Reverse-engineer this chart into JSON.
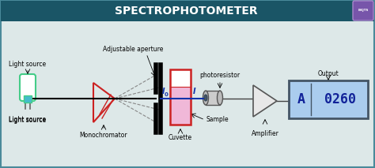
{
  "title": "SPECTROPHOTOMETER",
  "title_bg": "#1a5566",
  "title_color": "white",
  "bg_color": "#dde8e8",
  "border_color": "#4a8a9a",
  "labels": {
    "light_source": "Light source",
    "adjustable_aperture": "Adjustable aperture",
    "monochromator": "Monochromator",
    "cuvette": "Cuvette",
    "sample": "Sample",
    "photoresistor": "photoresistor",
    "amplifier": "Amplifier",
    "output": "Output",
    "I0": "I",
    "I0_sub": "0",
    "I": "I"
  },
  "display_text_A": "A",
  "display_text_num": "0260",
  "light_source_body": "#ffffff",
  "light_source_outline": "#44cc88",
  "light_source_base": "#44bbcc",
  "cuvette_fill": "#f0b8d8",
  "cuvette_top": "#ffffff",
  "cuvette_border": "#cc2222",
  "triangle_color": "#cc2222",
  "beam_color": "#1133aa",
  "display_bg": "#aaccee",
  "display_border": "#445566",
  "display_text_color": "#112299",
  "wire_color": "#444444",
  "font_size_label": 5.5,
  "font_size_title": 10
}
